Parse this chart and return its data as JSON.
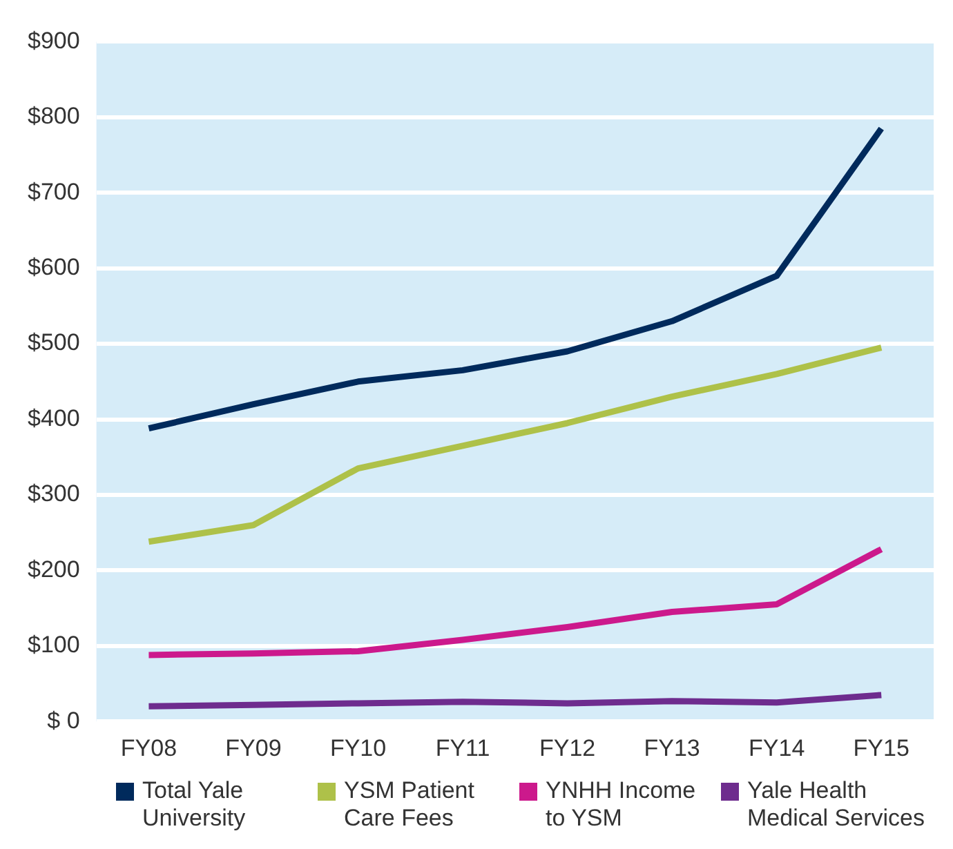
{
  "chart_data": {
    "type": "line",
    "categories": [
      "FY08",
      "FY09",
      "FY10",
      "FY11",
      "FY12",
      "FY13",
      "FY14",
      "FY15"
    ],
    "series": [
      {
        "name": "Total Yale University",
        "color": "#002a5c",
        "values": [
          388,
          420,
          450,
          465,
          490,
          530,
          590,
          785
        ]
      },
      {
        "name": "YSM Patient Care Fees",
        "color": "#aec149",
        "values": [
          238,
          260,
          335,
          365,
          395,
          430,
          460,
          495
        ]
      },
      {
        "name": "YNHH Income to YSM",
        "color": "#cc198c",
        "values": [
          88,
          90,
          93,
          108,
          125,
          145,
          155,
          228
        ]
      },
      {
        "name": "Yale Health Medical Services",
        "color": "#6e2c8e",
        "values": [
          20,
          22,
          24,
          26,
          24,
          27,
          25,
          35
        ]
      }
    ],
    "ylim": [
      0,
      900
    ],
    "yticks": [
      {
        "value": 0,
        "label": "$ 0"
      },
      {
        "value": 100,
        "label": "$100"
      },
      {
        "value": 200,
        "label": "$200"
      },
      {
        "value": 300,
        "label": "$300"
      },
      {
        "value": 400,
        "label": "$400"
      },
      {
        "value": 500,
        "label": "$500"
      },
      {
        "value": 600,
        "label": "$600"
      },
      {
        "value": 700,
        "label": "$700"
      },
      {
        "value": 800,
        "label": "$800"
      },
      {
        "value": 900,
        "label": "$900"
      }
    ],
    "grid": "y",
    "legend": "bottom",
    "marker": "none",
    "line_style": "solid"
  }
}
